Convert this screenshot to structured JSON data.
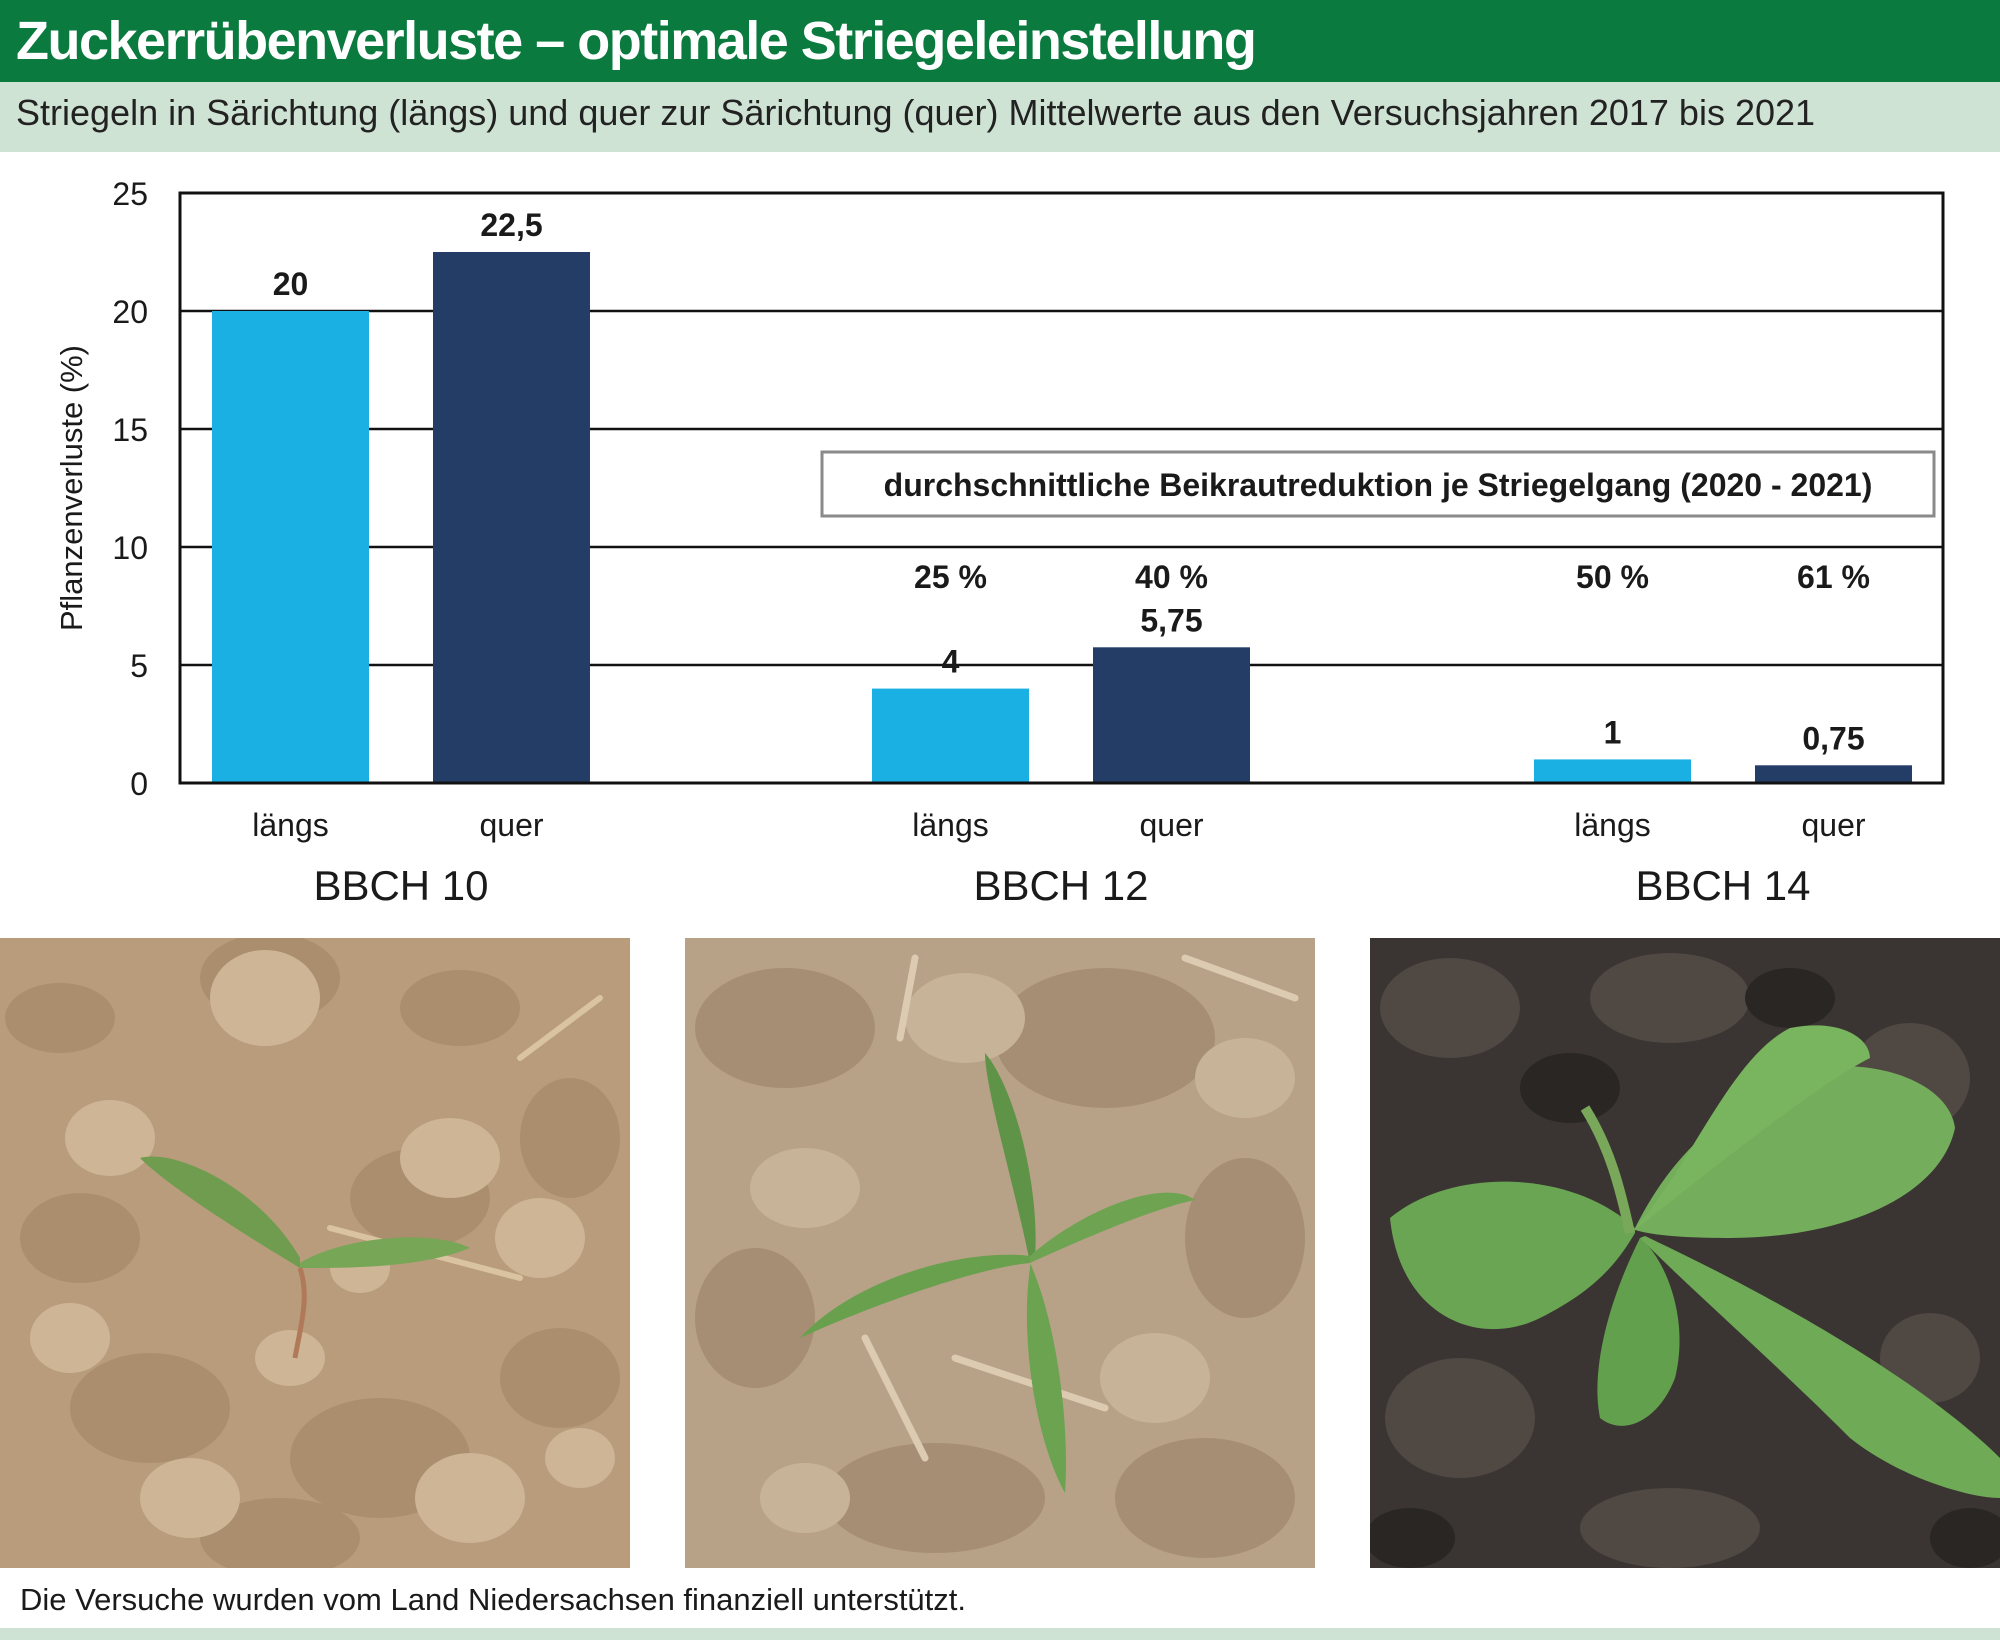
{
  "header": {
    "title": "Zuckerrübenverluste – optimale Striegeleinstellung",
    "subtitle": "Striegeln in Särichtung (längs) und quer zur Särichtung (quer) Mittelwerte aus den Versuchsjahren 2017 bis 2021"
  },
  "colors": {
    "header_green": "#0a7a3e",
    "subtitle_band": "#cfe3d4",
    "laengs": "#1bb0e4",
    "quer": "#233d66"
  },
  "chart_data": {
    "type": "bar",
    "ylabel": "Pflanzenverluste (%)",
    "ylim": [
      0,
      25
    ],
    "yticks": [
      0,
      5,
      10,
      15,
      20,
      25
    ],
    "grid": true,
    "groups": [
      {
        "label": "BBCH 10",
        "bars": [
          {
            "category": "längs",
            "value": 20,
            "value_label": "20",
            "reduction": ""
          },
          {
            "category": "quer",
            "value": 22.5,
            "value_label": "22,5",
            "reduction": ""
          }
        ]
      },
      {
        "label": "BBCH 12",
        "bars": [
          {
            "category": "längs",
            "value": 4,
            "value_label": "4",
            "reduction": "25 %"
          },
          {
            "category": "quer",
            "value": 5.75,
            "value_label": "5,75",
            "reduction": "40 %"
          }
        ]
      },
      {
        "label": "BBCH 14",
        "bars": [
          {
            "category": "längs",
            "value": 1,
            "value_label": "1",
            "reduction": "50 %"
          },
          {
            "category": "quer",
            "value": 0.75,
            "value_label": "0,75",
            "reduction": "61 %"
          }
        ]
      }
    ],
    "annotation": "durchschnittliche Beikrautreduktion je Striegelgang (2020 - 2021)"
  },
  "photos": [
    {
      "icon": "sugar-beet-seedling-bbch10-photo"
    },
    {
      "icon": "sugar-beet-seedling-bbch12-photo"
    },
    {
      "icon": "sugar-beet-seedling-bbch14-photo"
    }
  ],
  "footer": {
    "note": "Die Versuche wurden vom Land Niedersachsen finanziell unterstützt."
  }
}
